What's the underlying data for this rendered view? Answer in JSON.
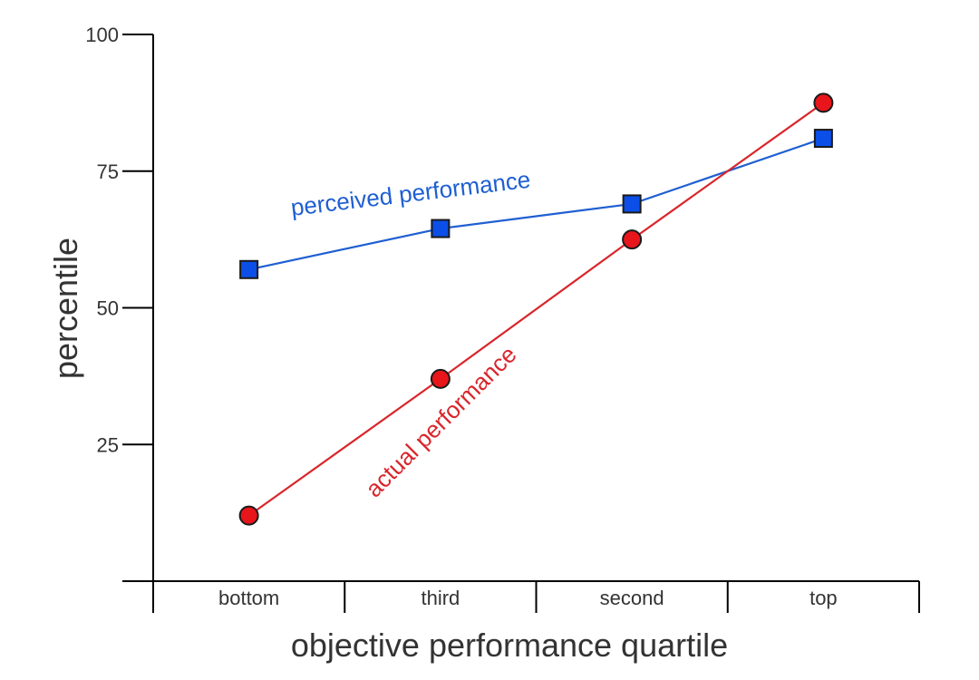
{
  "chart_data": {
    "type": "line",
    "categories": [
      "bottom",
      "third",
      "second",
      "top"
    ],
    "xlabel": "objective performance quartile",
    "ylabel": "percentile",
    "ylim": [
      0,
      100
    ],
    "yticks": [
      25,
      50,
      75,
      100
    ],
    "grid": false,
    "series": [
      {
        "name": "perceived performance",
        "values": [
          57,
          64.5,
          69,
          81
        ],
        "color": "#1f5fd1",
        "marker_fill": "#0b4fe8",
        "marker": "square"
      },
      {
        "name": "actual performance",
        "values": [
          12,
          37,
          62.5,
          87.5
        ],
        "color": "#d9262b",
        "marker_fill": "#e8151b",
        "marker": "circle"
      }
    ]
  }
}
